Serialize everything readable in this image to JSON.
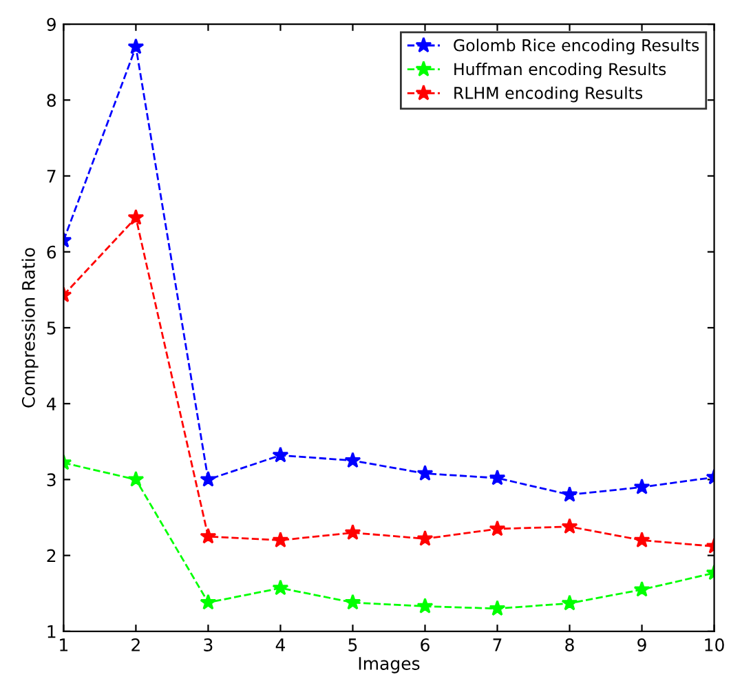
{
  "chart_data": {
    "type": "line",
    "xlabel": "Images",
    "ylabel": "Compression Ratio",
    "x": [
      1,
      2,
      3,
      4,
      5,
      6,
      7,
      8,
      9,
      10
    ],
    "series": [
      {
        "name": "Golomb Rice encoding Results",
        "color": "#0000ff",
        "values": [
          6.15,
          8.7,
          3.0,
          3.32,
          3.25,
          3.08,
          3.02,
          2.8,
          2.9,
          3.03
        ]
      },
      {
        "name": "Huffman encoding Results",
        "color": "#00ff00",
        "values": [
          3.22,
          3.0,
          1.38,
          1.57,
          1.38,
          1.33,
          1.3,
          1.37,
          1.55,
          1.77
        ]
      },
      {
        "name": "RLHM encoding Results",
        "color": "#ff0000",
        "values": [
          5.43,
          6.45,
          2.25,
          2.2,
          2.3,
          2.22,
          2.35,
          2.38,
          2.2,
          2.12
        ]
      }
    ],
    "xlim": [
      1,
      10
    ],
    "ylim": [
      1,
      9
    ],
    "xticks": [
      1,
      2,
      3,
      4,
      5,
      6,
      7,
      8,
      9,
      10
    ],
    "yticks": [
      1,
      2,
      3,
      4,
      5,
      6,
      7,
      8,
      9
    ],
    "legend": "top right",
    "marker": "star",
    "line_style": "dashed",
    "grid": false
  }
}
